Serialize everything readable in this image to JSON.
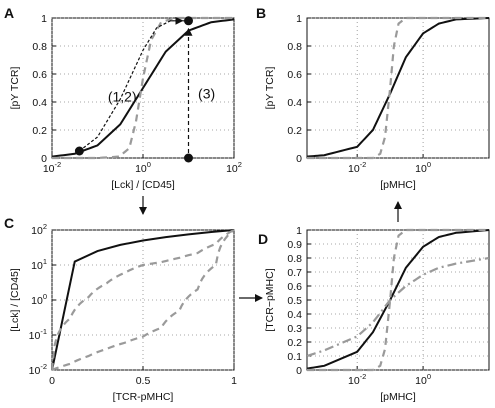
{
  "chart_data": [
    {
      "panel": "A",
      "type": "line",
      "xscale": "log",
      "xlim": [
        0.01,
        100
      ],
      "ylim": [
        0,
        1
      ],
      "xlabel": "[Lck] / [CD45]",
      "ylabel": "[pY TCR]",
      "xticks": [
        "10-2",
        "100",
        "102"
      ],
      "yticks": [
        "0",
        "0.2",
        "0.4",
        "0.6",
        "0.8",
        "1"
      ],
      "grid": true,
      "series": [
        {
          "style": "solid-black",
          "x": [
            0.01,
            0.0316,
            0.1,
            0.316,
            1,
            3.16,
            10,
            31.6,
            100
          ],
          "y": [
            0.01,
            0.03,
            0.09,
            0.24,
            0.5,
            0.76,
            0.91,
            0.97,
            0.99
          ]
        },
        {
          "style": "dashed-gray",
          "x": [
            0.01,
            0.1,
            0.3,
            0.5,
            0.7,
            1,
            1.5,
            2.5,
            5,
            100
          ],
          "y": [
            0,
            0,
            0.01,
            0.07,
            0.26,
            0.57,
            0.84,
            0.97,
            1,
            1
          ]
        },
        {
          "style": "dotted-black",
          "x": [
            0.04,
            0.1,
            0.316,
            1,
            2,
            4,
            10
          ],
          "y": [
            0.05,
            0.15,
            0.42,
            0.77,
            0.93,
            0.98,
            0.98
          ]
        }
      ],
      "markers": [
        {
          "x": 0.04,
          "y": 0.05
        },
        {
          "x": 10,
          "y": 0.98
        },
        {
          "x": 10,
          "y": 0.0
        }
      ],
      "annotations": [
        {
          "text": "(1,2)",
          "x": 0.35,
          "y": 0.44
        },
        {
          "text": "(3)",
          "x": 25,
          "y": 0.46
        }
      ]
    },
    {
      "panel": "B",
      "type": "line",
      "xscale": "log",
      "xlim": [
        0.0003,
        100
      ],
      "ylim": [
        0,
        1
      ],
      "xlabel": "[pMHC]",
      "ylabel": "[pY TCR]",
      "xticks": [
        "10-2",
        "100"
      ],
      "yticks": [
        "0",
        "0.2",
        "0.4",
        "0.6",
        "0.8",
        "1"
      ],
      "grid": true,
      "series": [
        {
          "style": "solid-black",
          "x": [
            0.0003,
            0.001,
            0.01,
            0.03,
            0.1,
            0.3,
            1,
            3,
            10,
            100
          ],
          "y": [
            0.01,
            0.02,
            0.08,
            0.2,
            0.46,
            0.72,
            0.89,
            0.96,
            0.99,
            1
          ]
        },
        {
          "style": "dashed-gray",
          "x": [
            0.0003,
            0.03,
            0.05,
            0.07,
            0.1,
            0.13,
            0.18,
            0.3,
            1,
            100
          ],
          "y": [
            0,
            0,
            0.03,
            0.15,
            0.5,
            0.8,
            0.96,
            1,
            1,
            1
          ]
        }
      ]
    },
    {
      "panel": "C",
      "type": "line",
      "xscale": "linear",
      "yscale": "log",
      "xlim": [
        0,
        1
      ],
      "ylim": [
        0.01,
        100
      ],
      "xlabel": "[TCR-pMHC]",
      "ylabel": "[Lck] / [CD45]",
      "xticks": [
        "0",
        "0.5",
        "1"
      ],
      "yticks": [
        "10-2",
        "10-1",
        "100",
        "101",
        "102"
      ],
      "grid": true,
      "series": [
        {
          "style": "solid-black",
          "x": [
            0,
            1
          ],
          "y": [
            0.01,
            100
          ]
        },
        {
          "style": "dashed-gray",
          "x": [
            0,
            0.1,
            0.2,
            0.3,
            0.4,
            0.5,
            0.6,
            0.7,
            0.8,
            0.9,
            1
          ],
          "y": [
            0.01,
            0.3,
            1.2,
            3,
            6,
            10,
            12,
            16,
            22,
            40,
            100
          ]
        },
        {
          "style": "dashed-gray",
          "x": [
            0,
            0.1,
            0.2,
            0.3,
            0.4,
            0.5,
            0.6,
            0.7,
            0.8,
            0.9,
            1
          ],
          "y": [
            0.01,
            0.015,
            0.025,
            0.04,
            0.06,
            0.09,
            0.16,
            0.5,
            2,
            10,
            100
          ]
        }
      ]
    },
    {
      "panel": "D",
      "type": "line",
      "xscale": "log",
      "xlim": [
        0.0003,
        100
      ],
      "ylim": [
        0,
        1
      ],
      "xlabel": "[pMHC]",
      "ylabel": "[TCR−pMHC]",
      "xticks": [
        "10-2",
        "100"
      ],
      "yticks": [
        "0",
        "0.1",
        "0.2",
        "0.3",
        "0.4",
        "0.5",
        "0.6",
        "0.7",
        "0.8",
        "0.9",
        "1"
      ],
      "grid": true,
      "series": [
        {
          "style": "solid-black",
          "x": [
            0.0003,
            0.001,
            0.01,
            0.03,
            0.1,
            0.3,
            1,
            3,
            10,
            100
          ],
          "y": [
            0.01,
            0.03,
            0.13,
            0.27,
            0.5,
            0.73,
            0.88,
            0.95,
            0.98,
            1
          ]
        },
        {
          "style": "dashed-gray",
          "x": [
            0.0003,
            0.03,
            0.05,
            0.07,
            0.1,
            0.13,
            0.18,
            0.3,
            1,
            100
          ],
          "y": [
            0,
            0,
            0.03,
            0.15,
            0.5,
            0.8,
            0.96,
            1,
            1,
            1
          ]
        },
        {
          "style": "dashdot-gray",
          "x": [
            0.0003,
            0.001,
            0.01,
            0.03,
            0.1,
            0.3,
            1,
            3,
            10,
            100
          ],
          "y": [
            0.1,
            0.14,
            0.24,
            0.34,
            0.5,
            0.6,
            0.68,
            0.73,
            0.76,
            0.8
          ]
        }
      ]
    }
  ],
  "colors": {
    "black": "#111111",
    "gray": "#9a9a9a",
    "grid": "#8a8a8a"
  }
}
